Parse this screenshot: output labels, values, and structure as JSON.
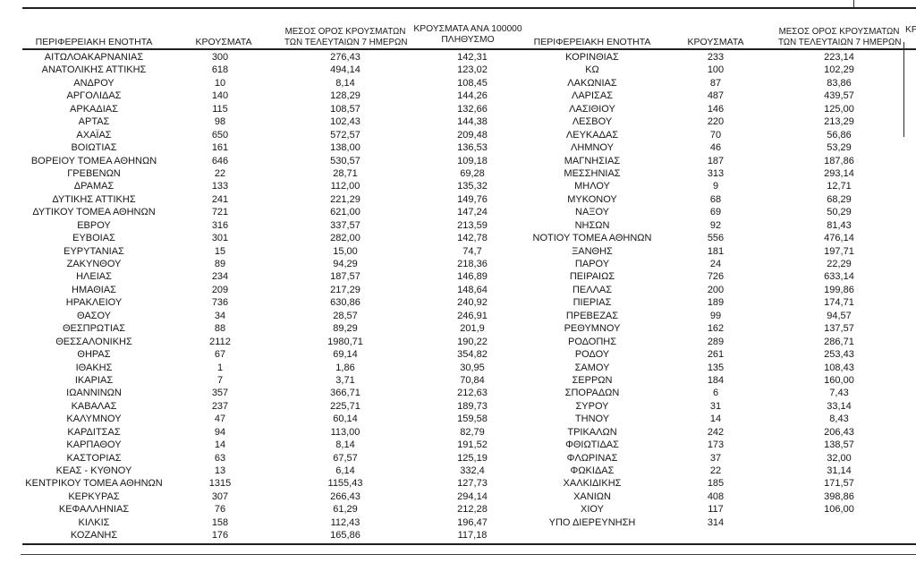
{
  "colors": {
    "text": "#1a1a1a",
    "rule": "#1f1f1f",
    "background": "#ffffff"
  },
  "header": {
    "region": "ΠΕΡΙΦΕΡΕΙΑΚΗ ΕΝΟΤΗΤΑ",
    "cases": "ΚΡΟΥΣΜΑΤΑ",
    "avg7_line1": "ΜΕΣΟΣ ΟΡΟΣ ΚΡΟΥΣΜΑΤΩΝ",
    "avg7_line2": "ΤΩΝ ΤΕΛΕΥΤΑΙΩΝ 7 ΗΜΕΡΩΝ",
    "per100k_line1": "ΚΡΟΥΣΜΑΤΑ ΑΝΑ 100000",
    "per100k_line2": "ΠΛΗΘΥΣΜΟ",
    "clipped_right_fragment": "ΚΡ"
  },
  "left_table": {
    "rows": [
      [
        "ΑΙΤΩΛΟΑΚΑΡΝΑΝΙΑΣ",
        "300",
        "276,43",
        "142,31"
      ],
      [
        "ΑΝΑΤΟΛΙΚΗΣ ΑΤΤΙΚΗΣ",
        "618",
        "494,14",
        "123,02"
      ],
      [
        "ΑΝΔΡΟΥ",
        "10",
        "8,14",
        "108,45"
      ],
      [
        "ΑΡΓΟΛΙΔΑΣ",
        "140",
        "128,29",
        "144,26"
      ],
      [
        "ΑΡΚΑΔΙΑΣ",
        "115",
        "108,57",
        "132,66"
      ],
      [
        "ΑΡΤΑΣ",
        "98",
        "102,43",
        "144,38"
      ],
      [
        "ΑΧΑΪΑΣ",
        "650",
        "572,57",
        "209,48"
      ],
      [
        "ΒΟΙΩΤΙΑΣ",
        "161",
        "138,00",
        "136,53"
      ],
      [
        "ΒΟΡΕΙΟΥ ΤΟΜΕΑ ΑΘΗΝΩΝ",
        "646",
        "530,57",
        "109,18"
      ],
      [
        "ΓΡΕΒΕΝΩΝ",
        "22",
        "28,71",
        "69,28"
      ],
      [
        "ΔΡΑΜΑΣ",
        "133",
        "112,00",
        "135,32"
      ],
      [
        "ΔΥΤΙΚΗΣ ΑΤΤΙΚΗΣ",
        "241",
        "221,29",
        "149,76"
      ],
      [
        "ΔΥΤΙΚΟΥ ΤΟΜΕΑ ΑΘΗΝΩΝ",
        "721",
        "621,00",
        "147,24"
      ],
      [
        "ΕΒΡΟΥ",
        "316",
        "337,57",
        "213,59"
      ],
      [
        "ΕΥΒΟΙΑΣ",
        "301",
        "282,00",
        "142,78"
      ],
      [
        "ΕΥΡΥΤΑΝΙΑΣ",
        "15",
        "15,00",
        "74,7"
      ],
      [
        "ΖΑΚΥΝΘΟΥ",
        "89",
        "94,29",
        "218,36"
      ],
      [
        "ΗΛΕΙΑΣ",
        "234",
        "187,57",
        "146,89"
      ],
      [
        "ΗΜΑΘΙΑΣ",
        "209",
        "217,29",
        "148,64"
      ],
      [
        "ΗΡΑΚΛΕΙΟΥ",
        "736",
        "630,86",
        "240,92"
      ],
      [
        "ΘΑΣΟΥ",
        "34",
        "28,57",
        "246,91"
      ],
      [
        "ΘΕΣΠΡΩΤΙΑΣ",
        "88",
        "89,29",
        "201,9"
      ],
      [
        "ΘΕΣΣΑΛΟΝΙΚΗΣ",
        "2112",
        "1980,71",
        "190,22"
      ],
      [
        "ΘΗΡΑΣ",
        "67",
        "69,14",
        "354,82"
      ],
      [
        "ΙΘΑΚΗΣ",
        "1",
        "1,86",
        "30,95"
      ],
      [
        "ΙΚΑΡΙΑΣ",
        "7",
        "3,71",
        "70,84"
      ],
      [
        "ΙΩΑΝΝΙΝΩΝ",
        "357",
        "366,71",
        "212,63"
      ],
      [
        "ΚΑΒΑΛΑΣ",
        "237",
        "225,71",
        "189,73"
      ],
      [
        "ΚΑΛΥΜΝΟΥ",
        "47",
        "60,14",
        "159,58"
      ],
      [
        "ΚΑΡΔΙΤΣΑΣ",
        "94",
        "113,00",
        "82,79"
      ],
      [
        "ΚΑΡΠΑΘΟΥ",
        "14",
        "8,14",
        "191,52"
      ],
      [
        "ΚΑΣΤΟΡΙΑΣ",
        "63",
        "67,57",
        "125,19"
      ],
      [
        "ΚΕΑΣ - ΚΥΘΝΟΥ",
        "13",
        "6,14",
        "332,4"
      ],
      [
        "ΚΕΝΤΡΙΚΟΥ ΤΟΜΕΑ ΑΘΗΝΩΝ",
        "1315",
        "1155,43",
        "127,73"
      ],
      [
        "ΚΕΡΚΥΡΑΣ",
        "307",
        "266,43",
        "294,14"
      ],
      [
        "ΚΕΦΑΛΛΗΝΙΑΣ",
        "76",
        "61,29",
        "212,28"
      ],
      [
        "ΚΙΛΚΙΣ",
        "158",
        "112,43",
        "196,47"
      ],
      [
        "ΚΟΖΑΝΗΣ",
        "176",
        "165,86",
        "117,18"
      ]
    ]
  },
  "right_table": {
    "rows": [
      [
        "ΚΟΡΙΝΘΙΑΣ",
        "233",
        "223,14"
      ],
      [
        "ΚΩ",
        "100",
        "102,29"
      ],
      [
        "ΛΑΚΩΝΙΑΣ",
        "87",
        "83,86"
      ],
      [
        "ΛΑΡΙΣΑΣ",
        "487",
        "439,57"
      ],
      [
        "ΛΑΣΙΘΙΟΥ",
        "146",
        "125,00"
      ],
      [
        "ΛΕΣΒΟΥ",
        "220",
        "213,29"
      ],
      [
        "ΛΕΥΚΑΔΑΣ",
        "70",
        "56,86"
      ],
      [
        "ΛΗΜΝΟΥ",
        "46",
        "53,29"
      ],
      [
        "ΜΑΓΝΗΣΙΑΣ",
        "187",
        "187,86"
      ],
      [
        "ΜΕΣΣΗΝΙΑΣ",
        "313",
        "293,14"
      ],
      [
        "ΜΗΛΟΥ",
        "9",
        "12,71"
      ],
      [
        "ΜΥΚΟΝΟΥ",
        "68",
        "68,29"
      ],
      [
        "ΝΑΞΟΥ",
        "69",
        "50,29"
      ],
      [
        "ΝΗΣΩΝ",
        "92",
        "81,43"
      ],
      [
        "ΝΟΤΙΟΥ ΤΟΜΕΑ ΑΘΗΝΩΝ",
        "556",
        "476,14"
      ],
      [
        "ΞΑΝΘΗΣ",
        "181",
        "197,71"
      ],
      [
        "ΠΑΡΟΥ",
        "24",
        "22,29"
      ],
      [
        "ΠΕΙΡΑΙΩΣ",
        "726",
        "633,14"
      ],
      [
        "ΠΕΛΛΑΣ",
        "200",
        "199,86"
      ],
      [
        "ΠΙΕΡΙΑΣ",
        "189",
        "174,71"
      ],
      [
        "ΠΡΕΒΕΖΑΣ",
        "99",
        "94,57"
      ],
      [
        "ΡΕΘΥΜΝΟΥ",
        "162",
        "137,57"
      ],
      [
        "ΡΟΔΟΠΗΣ",
        "289",
        "286,71"
      ],
      [
        "ΡΟΔΟΥ",
        "261",
        "253,43"
      ],
      [
        "ΣΑΜΟΥ",
        "135",
        "108,43"
      ],
      [
        "ΣΕΡΡΩΝ",
        "184",
        "160,00"
      ],
      [
        "ΣΠΟΡΑΔΩΝ",
        "6",
        "7,43"
      ],
      [
        "ΣΥΡΟΥ",
        "31",
        "33,14"
      ],
      [
        "ΤΗΝΟΥ",
        "14",
        "8,43"
      ],
      [
        "ΤΡΙΚΑΛΩΝ",
        "242",
        "206,43"
      ],
      [
        "ΦΘΙΩΤΙΔΑΣ",
        "173",
        "138,57"
      ],
      [
        "ΦΛΩΡΙΝΑΣ",
        "37",
        "32,00"
      ],
      [
        "ΦΩΚΙΔΑΣ",
        "22",
        "31,14"
      ],
      [
        "ΧΑΛΚΙΔΙΚΗΣ",
        "185",
        "171,57"
      ],
      [
        "ΧΑΝΙΩΝ",
        "408",
        "398,86"
      ],
      [
        "ΧΙΟΥ",
        "117",
        "106,00"
      ],
      [
        "ΥΠΟ ΔΙΕΡΕΥΝΗΣΗ",
        "314",
        ""
      ]
    ]
  }
}
